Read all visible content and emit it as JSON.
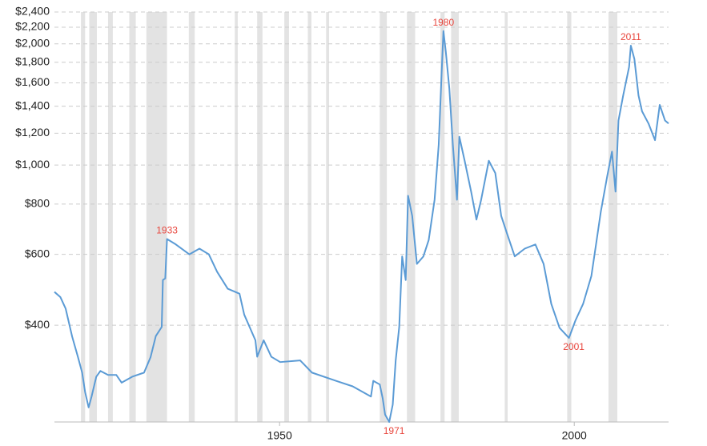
{
  "chart_data": {
    "type": "line",
    "log_scale_y": true,
    "grid": true,
    "color": "#5b9bd5",
    "recession_color": "#e3e3e3",
    "xlim": [
      1911.8,
      2016
    ],
    "xticks": [
      1950,
      2000
    ],
    "ylim": [
      230,
      2400
    ],
    "yticks": [
      {
        "value": 400,
        "label": "$400"
      },
      {
        "value": 600,
        "label": "$600"
      },
      {
        "value": 800,
        "label": "$800"
      },
      {
        "value": 1000,
        "label": "$1,000"
      },
      {
        "value": 1200,
        "label": "$1,200"
      },
      {
        "value": 1400,
        "label": "$1,400"
      },
      {
        "value": 1600,
        "label": "$1,600"
      },
      {
        "value": 1800,
        "label": "$1,800"
      },
      {
        "value": 2000,
        "label": "$2,000"
      },
      {
        "value": 2200,
        "label": "$2,200"
      },
      {
        "value": 2400,
        "label": "$2,400"
      }
    ],
    "recessions": [
      [
        1916.3,
        1917.0
      ],
      [
        1917.7,
        1919.0
      ],
      [
        1920.9,
        1921.7
      ],
      [
        1924.5,
        1925.6
      ],
      [
        1927.4,
        1930.9
      ],
      [
        1934.6,
        1935.6
      ],
      [
        1942.4,
        1942.9
      ],
      [
        1946.2,
        1947.1
      ],
      [
        1950.8,
        1951.6
      ],
      [
        1954.8,
        1955.4
      ],
      [
        1957.9,
        1958.4
      ],
      [
        1967.0,
        1968.2
      ],
      [
        1971.6,
        1973.0
      ],
      [
        1977.3,
        1978.0
      ],
      [
        1979.1,
        1980.4
      ],
      [
        1988.2,
        1988.7
      ],
      [
        1998.8,
        1999.5
      ],
      [
        2005.8,
        2007.3
      ]
    ],
    "x": [
      1911.8,
      1912.8,
      1913.7,
      1914.8,
      1915.8,
      1916.5,
      1917.0,
      1917.6,
      1918.1,
      1918.9,
      1919.6,
      1920.9,
      1922.3,
      1923.2,
      1925.0,
      1927.0,
      1928.1,
      1929.0,
      1930.0,
      1930.2,
      1930.6,
      1930.9,
      1932.4,
      1934.7,
      1936.4,
      1938.0,
      1939.4,
      1941.2,
      1943.2,
      1944.0,
      1945.9,
      1946.2,
      1947.3,
      1948.6,
      1950.1,
      1953.5,
      1955.5,
      1959.6,
      1962.4,
      1965.5,
      1965.9,
      1967.0,
      1967.5,
      1967.9,
      1968.6,
      1969.2,
      1969.7,
      1970.3,
      1970.8,
      1971.4,
      1971.8,
      1972.5,
      1973.3,
      1974.4,
      1975.3,
      1976.3,
      1977.0,
      1977.5,
      1977.8,
      1978.2,
      1978.8,
      1979.4,
      1980.1,
      1980.5,
      1981.4,
      1982.5,
      1983.4,
      1984.2,
      1985.5,
      1986.6,
      1987.6,
      1988.5,
      1989.9,
      1991.6,
      1993.4,
      1994.8,
      1996.1,
      1997.5,
      1999.1,
      2000.2,
      2001.5,
      2002.9,
      2003.8,
      2004.5,
      2005.6,
      2006.4,
      2007.0,
      2007.5,
      2008.3,
      2009.3,
      2009.6,
      2010.2,
      2010.9,
      2011.5,
      2012.6,
      2013.7,
      2014.5,
      2015.4,
      2016.0
    ],
    "series": [
      {
        "color": "#5b9bd5",
        "values": [
          484,
          470,
          440,
          375,
          333,
          305,
          273,
          250,
          266,
          298,
          308,
          301,
          301,
          288,
          298,
          305,
          333,
          376,
          396,
          518,
          523,
          655,
          635,
          600,
          620,
          600,
          543,
          493,
          479,
          425,
          367,
          334,
          367,
          334,
          324,
          327,
          305,
          291,
          282,
          266,
          291,
          285,
          263,
          240,
          230,
          254,
          327,
          396,
          593,
          518,
          839,
          748,
          568,
          593,
          651,
          820,
          1123,
          1700,
          2152,
          1914,
          1551,
          1123,
          820,
          1176,
          1025,
          859,
          732,
          820,
          1025,
          955,
          748,
          682,
          593,
          620,
          635,
          568,
          452,
          394,
          372,
          411,
          452,
          530,
          651,
          765,
          940,
          1080,
          859,
          1290,
          1489,
          1752,
          1980,
          1835,
          1489,
          1360,
          1268,
          1153,
          1411,
          1290,
          1268
        ]
      }
    ],
    "annotations": [
      {
        "text": "1933",
        "x": 1930.9,
        "y": 655
      },
      {
        "text": "1971",
        "x": 1968.6,
        "y": 230
      },
      {
        "text": "1980",
        "x": 1977.8,
        "y": 2152
      },
      {
        "text": "2001",
        "x": 1999.1,
        "y": 372
      },
      {
        "text": "2011",
        "x": 2009.6,
        "y": 1980
      }
    ]
  }
}
